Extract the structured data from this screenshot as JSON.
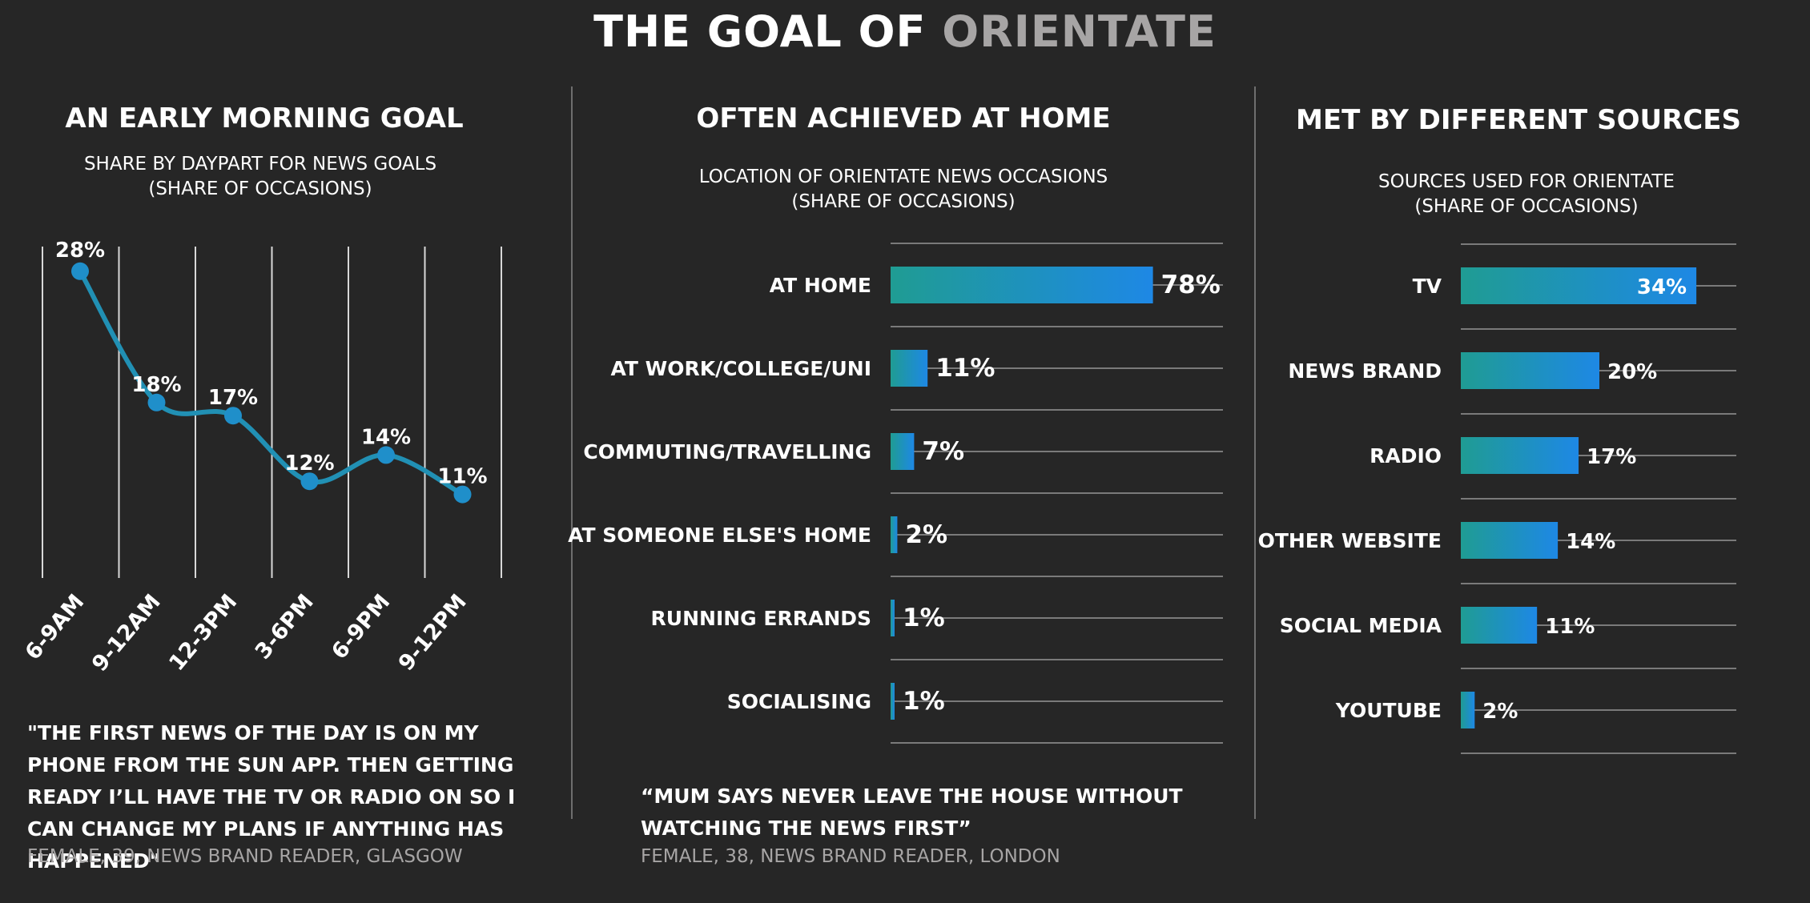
{
  "header": {
    "title_part1": "THE GOAL OF ",
    "title_part2": "ORIENTATE"
  },
  "colors": {
    "background": "#262626",
    "accent_teal": "#1f9c93",
    "accent_blue": "#1e88e5",
    "line": "#2190b4",
    "muted_text": "#a7a5a5"
  },
  "panel1": {
    "title": "AN EARLY MORNING GOAL",
    "subtitle_line1": "SHARE BY DAYPART FOR NEWS GOALS",
    "subtitle_line2": "(SHARE OF OCCASIONS)",
    "quote": "\"THE FIRST NEWS OF THE DAY IS ON MY PHONE FROM THE SUN APP. THEN GETTING READY I’LL HAVE THE TV OR RADIO ON SO I CAN CHANGE MY PLANS IF ANYTHING HAS HAPPENED\"",
    "attribution": "FEMALE, 39, NEWS BRAND READER, GLASGOW"
  },
  "panel2": {
    "title": "OFTEN ACHIEVED AT HOME",
    "subtitle_line1": "LOCATION OF ORIENTATE NEWS OCCASIONS",
    "subtitle_line2": "(SHARE OF OCCASIONS)",
    "quote": "“MUM SAYS NEVER LEAVE THE HOUSE WITHOUT WATCHING THE NEWS FIRST”",
    "attribution": "FEMALE, 38, NEWS BRAND READER, LONDON"
  },
  "panel3": {
    "title": "MET BY DIFFERENT SOURCES",
    "subtitle_line1": "SOURCES USED FOR ORIENTATE",
    "subtitle_line2": "(SHARE OF OCCASIONS)"
  },
  "chart_data": [
    {
      "type": "line",
      "title": "AN EARLY MORNING GOAL",
      "subtitle": "SHARE BY DAYPART FOR NEWS GOALS (SHARE OF OCCASIONS)",
      "categories": [
        "6-9AM",
        "9-12AM",
        "12-3PM",
        "3-6PM",
        "6-9PM",
        "9-12PM"
      ],
      "values": [
        28,
        18,
        17,
        12,
        14,
        11
      ],
      "value_labels": [
        "28%",
        "18%",
        "17%",
        "12%",
        "14%",
        "11%"
      ],
      "unit": "%",
      "ylim": [
        0,
        30
      ],
      "grid": "vertical"
    },
    {
      "type": "bar",
      "orientation": "horizontal",
      "title": "OFTEN ACHIEVED AT HOME",
      "subtitle": "LOCATION OF ORIENTATE NEWS OCCASIONS (SHARE OF OCCASIONS)",
      "categories": [
        "AT HOME",
        "AT WORK/COLLEGE/UNI",
        "COMMUTING/TRAVELLING",
        "AT SOMEONE ELSE'S HOME",
        "RUNNING ERRANDS",
        "SOCIALISING"
      ],
      "values": [
        78,
        11,
        7,
        2,
        1,
        1
      ],
      "value_labels": [
        "78%",
        "11%",
        "7%",
        "2%",
        "1%",
        "1%"
      ],
      "unit": "%",
      "xlim": [
        0,
        100
      ],
      "grid": "horizontal"
    },
    {
      "type": "bar",
      "orientation": "horizontal",
      "title": "MET BY DIFFERENT SOURCES",
      "subtitle": "SOURCES USED FOR ORIENTATE (SHARE OF OCCASIONS)",
      "categories": [
        "TV",
        "NEWS BRAND",
        "RADIO",
        "OTHER WEBSITE",
        "SOCIAL MEDIA",
        "YOUTUBE"
      ],
      "values": [
        34,
        20,
        17,
        14,
        11,
        2
      ],
      "value_labels": [
        "34%",
        "20%",
        "17%",
        "14%",
        "11%",
        "2%"
      ],
      "unit": "%",
      "xlim": [
        0,
        58
      ],
      "grid": "horizontal"
    }
  ]
}
